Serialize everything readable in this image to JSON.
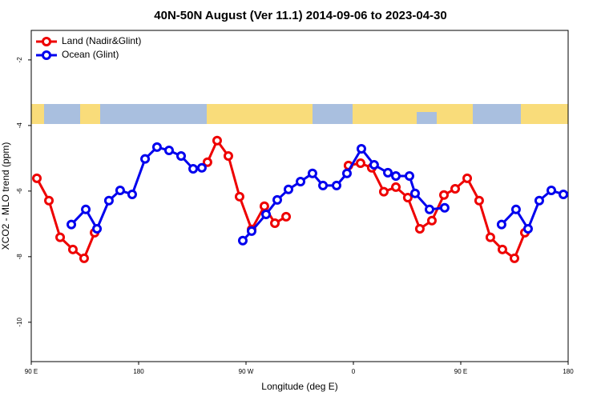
{
  "chart_data": {
    "type": "line",
    "title": "40N-50N August (Ver 11.1)   2014-09-06 to 2023-04-30",
    "x_label": "Longitude (deg E)",
    "y_label": "XCO2 - MLO trend (ppm)",
    "xlim": [
      90,
      540
    ],
    "ylim": [
      -11.2,
      -1.1
    ],
    "xticks": [
      {
        "value": 90,
        "label": "90 E"
      },
      {
        "value": 180,
        "label": "180"
      },
      {
        "value": 270,
        "label": "90 W"
      },
      {
        "value": 360,
        "label": "0"
      },
      {
        "value": 450,
        "label": "90 E"
      },
      {
        "value": 540,
        "label": "180"
      }
    ],
    "yticks": [
      -10,
      -8,
      -6,
      -4,
      -2
    ],
    "legend": "top-left",
    "series": [
      {
        "name": "Land (Nadir&Glint)",
        "color": "#ee0000",
        "x": [
          94.7,
          104.8,
          114.2,
          124.9,
          134.3,
          143.1,
          null,
          237.7,
          245.8,
          255.2,
          264.6,
          274.7,
          285.4,
          294.2,
          303.6,
          null,
          355.9,
          366.0,
          375.4,
          385.5,
          395.6,
          405.6,
          415.7,
          425.8,
          435.9,
          445.3,
          455.4,
          465.4,
          474.8,
          484.9,
          495.0,
          503.7
        ],
        "values": [
          -5.61,
          -6.29,
          -7.41,
          -7.78,
          -8.05,
          -7.27,
          null,
          -5.12,
          -4.46,
          -4.93,
          -6.17,
          -7.17,
          -6.46,
          -6.98,
          -6.78,
          null,
          -5.22,
          -5.15,
          -5.29,
          -6.02,
          -5.88,
          -6.2,
          -7.15,
          -6.9,
          -6.12,
          -5.93,
          -5.61,
          -6.29,
          -7.41,
          -7.78,
          -8.05,
          -7.27
        ]
      },
      {
        "name": "Ocean (Glint)",
        "color": "#0000ee",
        "x": [
          123.6,
          135.7,
          145.1,
          155.1,
          164.5,
          174.6,
          185.4,
          195.4,
          205.5,
          215.6,
          225.7,
          233.0,
          null,
          267.3,
          274.7,
          286.8,
          296.2,
          305.6,
          315.7,
          325.7,
          334.5,
          345.9,
          354.6,
          366.7,
          377.4,
          388.9,
          395.6,
          407.0,
          411.7,
          423.8,
          436.5,
          null,
          484.2,
          496.3,
          506.4,
          515.8,
          525.9,
          536.0
        ],
        "values": [
          -7.02,
          -6.56,
          -7.15,
          -6.29,
          -5.98,
          -6.1,
          -5.02,
          -4.66,
          -4.76,
          -4.93,
          -5.32,
          -5.29,
          null,
          -7.51,
          -7.22,
          -6.71,
          -6.27,
          -5.95,
          -5.71,
          -5.46,
          -5.83,
          -5.83,
          -5.46,
          -4.71,
          -5.2,
          -5.44,
          -5.54,
          -5.54,
          -6.07,
          -6.56,
          -6.51,
          null,
          -7.02,
          -6.56,
          -7.15,
          -6.29,
          -5.98,
          -6.1
        ]
      }
    ]
  }
}
